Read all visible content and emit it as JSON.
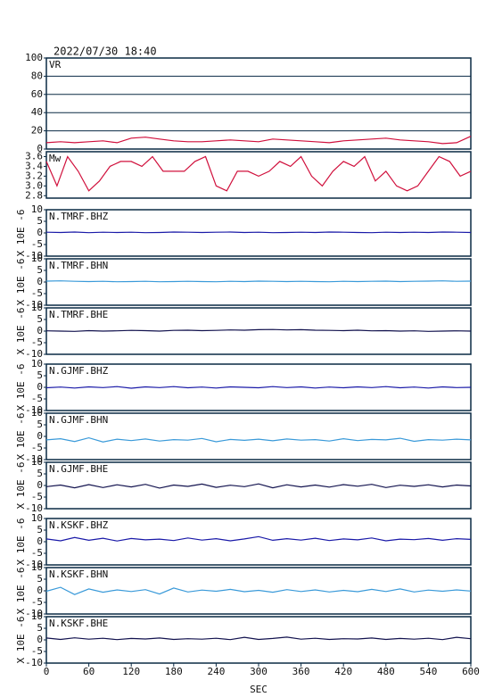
{
  "header": "2022/07/30 18:40",
  "chart_data": [
    {
      "type": "line",
      "title": "VR",
      "color": "#d0103c",
      "grid": true,
      "xlim": [
        0,
        600
      ],
      "ylim": [
        0,
        100
      ],
      "yticks": [
        0,
        20,
        40,
        60,
        80,
        100
      ],
      "x": [
        0,
        20,
        40,
        60,
        80,
        100,
        120,
        140,
        160,
        180,
        200,
        220,
        240,
        260,
        280,
        300,
        320,
        340,
        360,
        380,
        400,
        420,
        440,
        460,
        480,
        500,
        520,
        540,
        560,
        580,
        600
      ],
      "values": [
        7,
        8,
        7,
        8,
        9,
        7,
        12,
        13,
        11,
        9,
        8,
        8,
        9,
        10,
        9,
        8,
        11,
        10,
        9,
        8,
        7,
        9,
        10,
        11,
        12,
        10,
        9,
        8,
        6,
        7,
        14
      ]
    },
    {
      "type": "line",
      "title": "Mw",
      "color": "#d0103c",
      "grid": false,
      "xlim": [
        0,
        600
      ],
      "ylim": [
        2.75,
        3.7
      ],
      "yticks": [
        2.8,
        {
          "value": 3,
          "label": "3.0"
        },
        3.2,
        3.4,
        3.6
      ],
      "x": [
        0,
        15,
        30,
        45,
        60,
        75,
        90,
        105,
        120,
        135,
        150,
        165,
        180,
        195,
        210,
        225,
        240,
        255,
        270,
        285,
        300,
        315,
        330,
        345,
        360,
        375,
        390,
        405,
        420,
        435,
        450,
        465,
        480,
        495,
        510,
        525,
        540,
        555,
        570,
        585,
        600
      ],
      "values": [
        3.5,
        3.0,
        3.6,
        3.3,
        2.9,
        3.1,
        3.4,
        3.5,
        3.5,
        3.4,
        3.6,
        3.3,
        3.3,
        3.3,
        3.5,
        3.6,
        3.0,
        2.9,
        3.3,
        3.3,
        3.2,
        3.3,
        3.5,
        3.4,
        3.6,
        3.2,
        3.0,
        3.3,
        3.5,
        3.4,
        3.6,
        3.1,
        3.3,
        3.0,
        2.9,
        3.0,
        3.3,
        3.6,
        3.5,
        3.2,
        3.3
      ]
    },
    {
      "type": "line",
      "title": "N.TMRF.BHZ",
      "ylabel": "X 10E -6",
      "color": "#1a1aa8",
      "grid": false,
      "xlim": [
        0,
        600
      ],
      "ylim": [
        -10,
        10
      ],
      "yticks": [
        -10,
        -5,
        0,
        5,
        10
      ],
      "x": [
        0,
        20,
        40,
        60,
        80,
        100,
        120,
        140,
        160,
        180,
        200,
        220,
        240,
        260,
        280,
        300,
        320,
        340,
        360,
        380,
        400,
        420,
        440,
        460,
        480,
        500,
        520,
        540,
        560,
        580,
        600
      ],
      "values": [
        0.3,
        0.2,
        0.4,
        0.1,
        0.3,
        0.2,
        0.3,
        0.1,
        0.2,
        0.4,
        0.3,
        0.2,
        0.3,
        0.4,
        0.2,
        0.3,
        0.1,
        0.2,
        0.3,
        0.2,
        0.4,
        0.3,
        0.2,
        0.1,
        0.3,
        0.2,
        0.3,
        0.2,
        0.4,
        0.3,
        0.2
      ]
    },
    {
      "type": "line",
      "title": "N.TMRF.BHN",
      "ylabel": "X 10E -6",
      "color": "#3a9ad9",
      "grid": false,
      "xlim": [
        0,
        600
      ],
      "ylim": [
        -10,
        10
      ],
      "yticks": [
        -10,
        -5,
        0,
        5,
        10
      ],
      "x": [
        0,
        20,
        40,
        60,
        80,
        100,
        120,
        140,
        160,
        180,
        200,
        220,
        240,
        260,
        280,
        300,
        320,
        340,
        360,
        380,
        400,
        420,
        440,
        460,
        480,
        500,
        520,
        540,
        560,
        580,
        600
      ],
      "values": [
        0.4,
        0.5,
        0.3,
        0.2,
        0.3,
        0.1,
        0.2,
        0.3,
        0.1,
        0.2,
        0.3,
        0.2,
        0.1,
        0.3,
        0.2,
        0.4,
        0.3,
        0.2,
        0.3,
        0.2,
        0.1,
        0.3,
        0.2,
        0.3,
        0.4,
        0.2,
        0.3,
        0.4,
        0.5,
        0.3,
        0.4
      ]
    },
    {
      "type": "line",
      "title": "N.TMRF.BHE",
      "ylabel": "X 10E -6",
      "color": "#12124e",
      "grid": false,
      "xlim": [
        0,
        600
      ],
      "ylim": [
        -10,
        10
      ],
      "yticks": [
        -10,
        -5,
        0,
        5,
        10
      ],
      "x": [
        0,
        20,
        40,
        60,
        80,
        100,
        120,
        140,
        160,
        180,
        200,
        220,
        240,
        260,
        280,
        300,
        320,
        340,
        360,
        380,
        400,
        420,
        440,
        460,
        480,
        500,
        520,
        540,
        560,
        580,
        600
      ],
      "values": [
        0.1,
        0.0,
        -0.1,
        0.2,
        0.0,
        0.1,
        0.3,
        0.2,
        0.0,
        0.3,
        0.4,
        0.2,
        0.3,
        0.5,
        0.4,
        0.6,
        0.7,
        0.5,
        0.6,
        0.4,
        0.3,
        0.2,
        0.4,
        0.1,
        0.2,
        0.0,
        0.1,
        -0.1,
        0.0,
        0.1,
        0.0
      ]
    },
    {
      "type": "line",
      "title": "N.GJMF.BHZ",
      "ylabel": "X 10E -6",
      "color": "#1a1aa8",
      "grid": false,
      "xlim": [
        0,
        600
      ],
      "ylim": [
        -10,
        10
      ],
      "yticks": [
        -10,
        -5,
        0,
        5,
        10
      ],
      "x": [
        0,
        20,
        40,
        60,
        80,
        100,
        120,
        140,
        160,
        180,
        200,
        220,
        240,
        260,
        280,
        300,
        320,
        340,
        360,
        380,
        400,
        420,
        440,
        460,
        480,
        500,
        520,
        540,
        560,
        580,
        600
      ],
      "values": [
        -0.2,
        0.1,
        -0.3,
        0.2,
        -0.1,
        0.3,
        -0.4,
        0.2,
        -0.1,
        0.3,
        -0.2,
        0.1,
        -0.3,
        0.2,
        0.0,
        -0.2,
        0.3,
        -0.1,
        0.2,
        -0.3,
        0.1,
        -0.2,
        0.2,
        -0.1,
        0.3,
        -0.2,
        0.1,
        -0.3,
        0.2,
        -0.1,
        0.0
      ]
    },
    {
      "type": "line",
      "title": "N.GJMF.BHN",
      "ylabel": "X 10E -6",
      "color": "#3a9ad9",
      "grid": false,
      "xlim": [
        0,
        600
      ],
      "ylim": [
        -10,
        10
      ],
      "yticks": [
        -10,
        -5,
        0,
        5,
        10
      ],
      "x": [
        0,
        20,
        40,
        60,
        80,
        100,
        120,
        140,
        160,
        180,
        200,
        220,
        240,
        260,
        280,
        300,
        320,
        340,
        360,
        380,
        400,
        420,
        440,
        460,
        480,
        500,
        520,
        540,
        560,
        580,
        600
      ],
      "values": [
        -1.5,
        -1.0,
        -2.2,
        -0.6,
        -2.4,
        -1.2,
        -1.8,
        -1.1,
        -2.0,
        -1.4,
        -1.6,
        -0.9,
        -2.3,
        -1.3,
        -1.7,
        -1.2,
        -1.9,
        -1.1,
        -1.6,
        -1.4,
        -2.0,
        -1.0,
        -1.8,
        -1.3,
        -1.5,
        -0.8,
        -2.1,
        -1.4,
        -1.6,
        -1.2,
        -1.5
      ]
    },
    {
      "type": "line",
      "title": "N.GJMF.BHE",
      "ylabel": "X 10E -6",
      "color": "#12124e",
      "grid": false,
      "xlim": [
        0,
        600
      ],
      "ylim": [
        -10,
        10
      ],
      "yticks": [
        -10,
        -5,
        0,
        5,
        10
      ],
      "x": [
        0,
        20,
        40,
        60,
        80,
        100,
        120,
        140,
        160,
        180,
        200,
        220,
        240,
        260,
        280,
        300,
        320,
        340,
        360,
        380,
        400,
        420,
        440,
        460,
        480,
        500,
        520,
        540,
        560,
        580,
        600
      ],
      "values": [
        -0.5,
        0.2,
        -1.0,
        0.4,
        -0.9,
        0.3,
        -0.6,
        0.5,
        -1.1,
        0.2,
        -0.4,
        0.6,
        -0.8,
        0.1,
        -0.5,
        0.7,
        -1.0,
        0.3,
        -0.6,
        0.2,
        -0.7,
        0.4,
        -0.3,
        0.5,
        -0.9,
        0.1,
        -0.4,
        0.3,
        -0.6,
        0.2,
        -0.2
      ]
    },
    {
      "type": "line",
      "title": "N.KSKF.BHZ",
      "ylabel": "X 10E -6",
      "color": "#1a1aa8",
      "grid": false,
      "xlim": [
        0,
        600
      ],
      "ylim": [
        -10,
        10
      ],
      "yticks": [
        -10,
        -5,
        0,
        5,
        10
      ],
      "x": [
        0,
        20,
        40,
        60,
        80,
        100,
        120,
        140,
        160,
        180,
        200,
        220,
        240,
        260,
        280,
        300,
        320,
        340,
        360,
        380,
        400,
        420,
        440,
        460,
        480,
        500,
        520,
        540,
        560,
        580,
        600
      ],
      "values": [
        1.2,
        0.4,
        1.8,
        0.6,
        1.5,
        0.3,
        1.4,
        0.8,
        1.1,
        0.5,
        1.6,
        0.7,
        1.3,
        0.4,
        1.2,
        2.2,
        0.6,
        1.3,
        0.7,
        1.5,
        0.5,
        1.2,
        0.8,
        1.6,
        0.4,
        1.1,
        0.9,
        1.4,
        0.6,
        1.3,
        1.0
      ]
    },
    {
      "type": "line",
      "title": "N.KSKF.BHN",
      "ylabel": "X 10E -6",
      "color": "#3a9ad9",
      "grid": false,
      "xlim": [
        0,
        600
      ],
      "ylim": [
        -10,
        10
      ],
      "yticks": [
        -10,
        -5,
        0,
        5,
        10
      ],
      "x": [
        0,
        20,
        40,
        60,
        80,
        100,
        120,
        140,
        160,
        180,
        200,
        220,
        240,
        260,
        280,
        300,
        320,
        340,
        360,
        380,
        400,
        420,
        440,
        460,
        480,
        500,
        520,
        540,
        560,
        580,
        600
      ],
      "values": [
        -0.2,
        1.5,
        -1.6,
        0.8,
        -0.6,
        0.4,
        -0.3,
        0.5,
        -1.4,
        1.2,
        -0.5,
        0.3,
        -0.2,
        0.6,
        -0.4,
        0.2,
        -0.6,
        0.5,
        -0.3,
        0.4,
        -0.5,
        0.2,
        -0.4,
        0.6,
        -0.3,
        0.8,
        -0.5,
        0.3,
        -0.2,
        0.4,
        -0.1
      ]
    },
    {
      "type": "line",
      "title": "N.KSKF.BHE",
      "ylabel": "X 10E -6",
      "color": "#12124e",
      "grid": false,
      "xlim": [
        0,
        600
      ],
      "ylim": [
        -10,
        10
      ],
      "yticks": [
        -10,
        -5,
        0,
        5,
        10
      ],
      "x": [
        0,
        20,
        40,
        60,
        80,
        100,
        120,
        140,
        160,
        180,
        200,
        220,
        240,
        260,
        280,
        300,
        320,
        340,
        360,
        380,
        400,
        420,
        440,
        460,
        480,
        500,
        520,
        540,
        560,
        580,
        600
      ],
      "values": [
        0.8,
        0.2,
        0.9,
        0.3,
        0.7,
        0.1,
        0.6,
        0.4,
        0.8,
        0.2,
        0.5,
        0.3,
        0.7,
        0.1,
        1.1,
        0.2,
        0.6,
        1.2,
        0.3,
        0.7,
        0.2,
        0.5,
        0.4,
        0.8,
        0.2,
        0.6,
        0.3,
        0.7,
        0.1,
        1.1,
        0.5
      ],
      "xticks": [
        0,
        60,
        120,
        180,
        240,
        300,
        360,
        420,
        480,
        540,
        600
      ],
      "xlabel": "SEC"
    }
  ]
}
